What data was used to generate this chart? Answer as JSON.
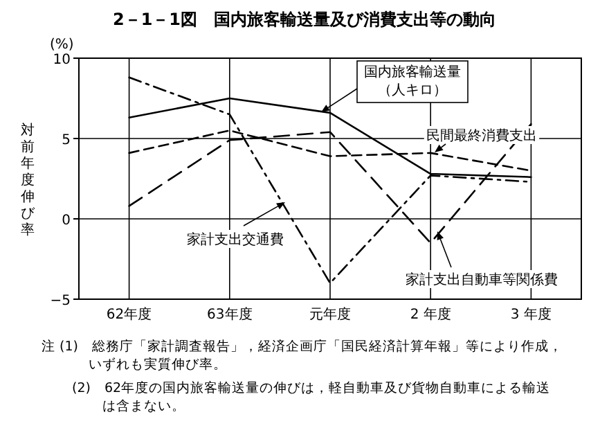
{
  "chart_data": {
    "type": "line",
    "title": "2－1－1図　国内旅客輸送量及び消費支出等の動向",
    "ylabel": "対前年度伸び率",
    "categories": [
      "62年度",
      "63年度",
      "元年度",
      "2 年度",
      "3 年度"
    ],
    "series": [
      {
        "name": "国内旅客輸送量（人キロ）",
        "color": "#000000",
        "line_style": "solid",
        "values": [
          6.3,
          7.5,
          6.6,
          2.8,
          2.6
        ]
      },
      {
        "name": "民間最終消費支出",
        "color": "#000000",
        "line_style": "dashed",
        "values": [
          4.1,
          5.5,
          3.9,
          4.1,
          3.0
        ]
      },
      {
        "name": "家計支出交通費",
        "color": "#000000",
        "line_style": "dashed",
        "values": [
          8.8,
          6.5,
          -4.0,
          2.7,
          2.3
        ]
      },
      {
        "name": "家計支出自動車等関係費",
        "color": "#000000",
        "line_style": "dashed",
        "values": [
          0.8,
          4.9,
          5.4,
          -1.5,
          5.9
        ]
      }
    ],
    "ylim": [
      -5,
      10
    ],
    "yticks": [
      {
        "value": -5,
        "label": "−5"
      },
      0,
      5,
      10
    ],
    "grid": true,
    "marker": "none",
    "annotations": [
      "(%)",
      "注 (1)　総務庁「家計調査報告」，経済企画庁「国民経済計算年報」等により作成，いずれも実質伸び率。",
      "(2)　62年度の国内旅客輸送量の伸びは，軽自動車及び貨物自動車による輸送は含まない。"
    ]
  }
}
